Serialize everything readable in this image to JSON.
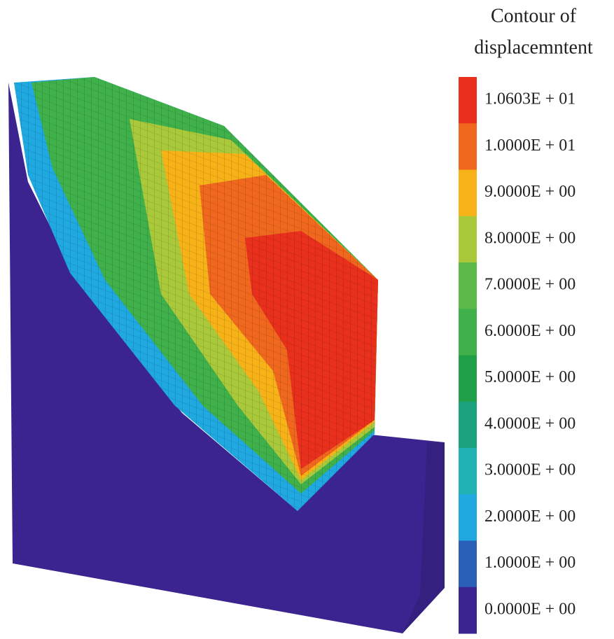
{
  "legend": {
    "title": [
      "Contour of",
      "displacemntent"
    ],
    "levels": [
      {
        "label": "1.0603E + 01",
        "color": "#e8301c"
      },
      {
        "label": "1.0000E + 01",
        "color": "#f0671e"
      },
      {
        "label": "9.0000E + 00",
        "color": "#f7b218"
      },
      {
        "label": "8.0000E + 00",
        "color": "#a9c93a"
      },
      {
        "label": "7.0000E + 00",
        "color": "#5cb848"
      },
      {
        "label": "6.0000E + 00",
        "color": "#3fb04a"
      },
      {
        "label": "5.0000E + 00",
        "color": "#1f9f48"
      },
      {
        "label": "4.0000E + 00",
        "color": "#1aa37c"
      },
      {
        "label": "3.0000E + 00",
        "color": "#21b2b4"
      },
      {
        "label": "2.0000E + 00",
        "color": "#20a8e0"
      },
      {
        "label": "1.0000E + 00",
        "color": "#2b60b8"
      },
      {
        "label": "0.0000E + 00",
        "color": "#3b2490"
      }
    ]
  }
}
